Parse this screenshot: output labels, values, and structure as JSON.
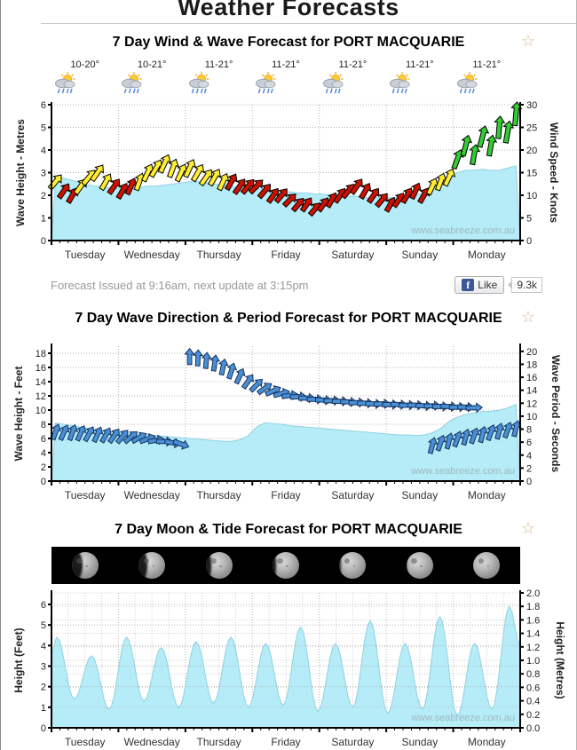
{
  "page": {
    "title": "Weather Forecasts"
  },
  "icons": {
    "favorite_star": "☆",
    "facebook_f": "f",
    "weather_icon": "sun-shower-icon"
  },
  "forecast_note": "Forecast Issued at 9:16am, next update at 3:15pm",
  "facebook": {
    "like_label": "Like",
    "like_count": "9.3k"
  },
  "watermark": "www.seabreeze.com.au",
  "days": [
    "Tuesday",
    "Wednesday",
    "Thursday",
    "Friday",
    "Saturday",
    "Sunday",
    "Monday"
  ],
  "colors": {
    "area_fill": "#b5ecf7",
    "area_edge": "#8fd2e2",
    "barb_yellow": "#ffee33",
    "barb_red": "#cc1100",
    "barb_green": "#33cc33",
    "arrow_blue": "#4a8fd4",
    "arrow_blue_edge": "#13315e",
    "grid": "#b5b5b5",
    "grid_light": "#cccccc",
    "axis": "#000000",
    "watermark": "#a0b8bf",
    "tick_text": "#222222",
    "day_text": "#333333"
  },
  "chart_data": [
    {
      "type": "area+wind-barbs",
      "title": "7 Day Wind & Wave Forecast for PORT MACQUARIE",
      "temps": [
        "10-20°",
        "10-21°",
        "11-21°",
        "11-21°",
        "11-21°",
        "11-21°",
        "11-21°"
      ],
      "y_left": {
        "label": "Wave Height - Metres",
        "min": 0,
        "max": 6,
        "step": 1
      },
      "y_right": {
        "label": "Wind Speed - Knots",
        "min": 0,
        "max": 30,
        "step": 5
      },
      "points_per_day": 8,
      "wave_height_m": [
        2.85,
        2.75,
        2.65,
        2.55,
        2.45,
        2.4,
        2.35,
        2.3,
        2.3,
        2.3,
        2.35,
        2.4,
        2.4,
        2.45,
        2.5,
        2.55,
        2.6,
        2.6,
        2.55,
        2.5,
        2.45,
        2.4,
        2.35,
        2.3,
        2.3,
        2.25,
        2.2,
        2.2,
        2.15,
        2.1,
        2.1,
        2.05,
        2.05,
        2.0,
        2.0,
        1.95,
        1.95,
        1.9,
        1.9,
        1.9,
        1.9,
        1.9,
        1.95,
        2.0,
        2.1,
        2.3,
        2.6,
        2.9,
        3.0,
        3.1,
        3.1,
        3.15,
        3.1,
        3.1,
        3.2,
        3.3
      ],
      "wind_knots": [
        13,
        11,
        10,
        12,
        14,
        15,
        13,
        12,
        11,
        12,
        13,
        15,
        16,
        17,
        16,
        15,
        16,
        15,
        14,
        14,
        13,
        13,
        12,
        12,
        12,
        11,
        10,
        10,
        9,
        8,
        8,
        7,
        8,
        9,
        10,
        11,
        12,
        11,
        10,
        9,
        8,
        9,
        10,
        11,
        10,
        12,
        13,
        14,
        18,
        21,
        19,
        23,
        21,
        25,
        24,
        28
      ],
      "wind_color": [
        "y",
        "r",
        "r",
        "y",
        "y",
        "y",
        "y",
        "r",
        "r",
        "r",
        "y",
        "y",
        "y",
        "y",
        "y",
        "y",
        "y",
        "y",
        "y",
        "y",
        "y",
        "r",
        "r",
        "r",
        "r",
        "r",
        "r",
        "r",
        "r",
        "r",
        "r",
        "r",
        "r",
        "r",
        "r",
        "r",
        "r",
        "r",
        "r",
        "r",
        "r",
        "r",
        "r",
        "r",
        "r",
        "y",
        "y",
        "y",
        "g",
        "g",
        "g",
        "g",
        "g",
        "g",
        "g",
        "g"
      ],
      "wind_dir_deg": [
        40,
        35,
        30,
        35,
        40,
        35,
        30,
        35,
        30,
        25,
        20,
        25,
        30,
        25,
        20,
        25,
        25,
        30,
        35,
        30,
        25,
        30,
        35,
        40,
        45,
        40,
        35,
        40,
        45,
        40,
        35,
        40,
        35,
        30,
        35,
        40,
        35,
        30,
        35,
        40,
        30,
        35,
        30,
        25,
        30,
        25,
        20,
        25,
        20,
        15,
        10,
        15,
        10,
        5,
        10,
        5
      ]
    },
    {
      "type": "area+direction-arrows",
      "title": "7 Day Wave Direction & Period Forecast for PORT MACQUARIE",
      "y_left": {
        "label": "Wave Height - Feet",
        "min": 0,
        "max": 19,
        "step": 2,
        "max_tick": 18
      },
      "y_right": {
        "label": "Wave Period - Seconds",
        "min": 0,
        "max": 20.8,
        "step": 2,
        "max_tick": 20
      },
      "points_per_day": 8,
      "wave_height_ft": [
        8.2,
        8.0,
        7.8,
        7.6,
        7.4,
        7.2,
        7.0,
        6.9,
        6.8,
        6.7,
        6.6,
        6.5,
        6.4,
        6.3,
        6.2,
        6.1,
        6.0,
        5.9,
        5.8,
        5.7,
        5.6,
        5.6,
        5.8,
        6.4,
        7.6,
        8.2,
        8.1,
        8.0,
        7.8,
        7.7,
        7.6,
        7.5,
        7.4,
        7.3,
        7.2,
        7.1,
        7.0,
        6.9,
        6.8,
        6.7,
        6.6,
        6.5,
        6.5,
        6.4,
        6.5,
        6.8,
        7.4,
        8.4,
        9.0,
        9.4,
        9.6,
        9.8,
        9.8,
        10.0,
        10.3,
        10.8
      ],
      "swells": [
        {
          "start_index": 0,
          "period_s": [
            7.6,
            7.5,
            7.5,
            7.4,
            7.3,
            7.2,
            7.1,
            7.0,
            6.9,
            6.8,
            6.7,
            6.5,
            6.3,
            6.1,
            5.9,
            5.7,
            19.2,
            19.0,
            18.6,
            18.2,
            17.6,
            17.0,
            16.2,
            15.4,
            14.8,
            14.3,
            13.9,
            13.5,
            13.2,
            13.0,
            12.8,
            12.6,
            12.5,
            12.4,
            12.3,
            12.2,
            12.1,
            12.0,
            11.9,
            11.9,
            11.8,
            11.8,
            11.7,
            11.7,
            11.6,
            11.6,
            11.5,
            11.5,
            11.4,
            11.4,
            11.3
          ],
          "dir_deg": [
            20,
            25,
            20,
            25,
            30,
            25,
            30,
            35,
            40,
            50,
            60,
            70,
            80,
            90,
            100,
            110,
            0,
            2,
            5,
            8,
            12,
            18,
            25,
            35,
            45,
            55,
            65,
            75,
            82,
            88,
            90,
            90,
            92,
            88,
            90,
            92,
            88,
            90,
            92,
            88,
            90,
            92,
            88,
            90,
            92,
            88,
            90,
            92,
            88,
            90,
            88
          ]
        },
        {
          "start_index": 45,
          "period_s": [
            5.5,
            5.9,
            6.2,
            6.5,
            6.8,
            7.0,
            7.2,
            7.5,
            7.7,
            7.9,
            8.1
          ],
          "dir_deg": [
            15,
            20,
            15,
            20,
            15,
            20,
            15,
            20,
            15,
            20,
            15
          ]
        }
      ]
    },
    {
      "type": "area-tide+moon",
      "title": "7 Day Moon & Tide Forecast for PORT MACQUARIE",
      "y_left": {
        "label": "Height (Feet)",
        "min": 0,
        "max": 6.56,
        "step": 1,
        "max_tick": 6
      },
      "y_right": {
        "label": "Height (Metres)",
        "min": 0,
        "max": 2.0,
        "step": 0.2
      },
      "moon_illumination": [
        0.6,
        0.68,
        0.76,
        0.84,
        0.9,
        0.96,
        1.0
      ],
      "tide_extremes": [
        {
          "x": 0.0,
          "ft": 3.6
        },
        {
          "x": 0.08,
          "ft": 4.4
        },
        {
          "x": 0.34,
          "ft": 1.4
        },
        {
          "x": 0.6,
          "ft": 3.5
        },
        {
          "x": 0.86,
          "ft": 0.9
        },
        {
          "x": 1.12,
          "ft": 4.4
        },
        {
          "x": 1.38,
          "ft": 1.3
        },
        {
          "x": 1.64,
          "ft": 3.9
        },
        {
          "x": 1.9,
          "ft": 1.0
        },
        {
          "x": 2.16,
          "ft": 4.2
        },
        {
          "x": 2.42,
          "ft": 1.2
        },
        {
          "x": 2.68,
          "ft": 4.4
        },
        {
          "x": 2.94,
          "ft": 1.0
        },
        {
          "x": 3.2,
          "ft": 4.1
        },
        {
          "x": 3.46,
          "ft": 1.1
        },
        {
          "x": 3.72,
          "ft": 4.9
        },
        {
          "x": 3.98,
          "ft": 0.8
        },
        {
          "x": 4.24,
          "ft": 4.1
        },
        {
          "x": 4.5,
          "ft": 1.0
        },
        {
          "x": 4.76,
          "ft": 5.2
        },
        {
          "x": 5.02,
          "ft": 0.7
        },
        {
          "x": 5.28,
          "ft": 4.1
        },
        {
          "x": 5.54,
          "ft": 0.9
        },
        {
          "x": 5.8,
          "ft": 5.4
        },
        {
          "x": 6.06,
          "ft": 0.6
        },
        {
          "x": 6.32,
          "ft": 4.1
        },
        {
          "x": 6.58,
          "ft": 0.9
        },
        {
          "x": 6.84,
          "ft": 5.9
        },
        {
          "x": 7.0,
          "ft": 4.0
        }
      ]
    }
  ]
}
